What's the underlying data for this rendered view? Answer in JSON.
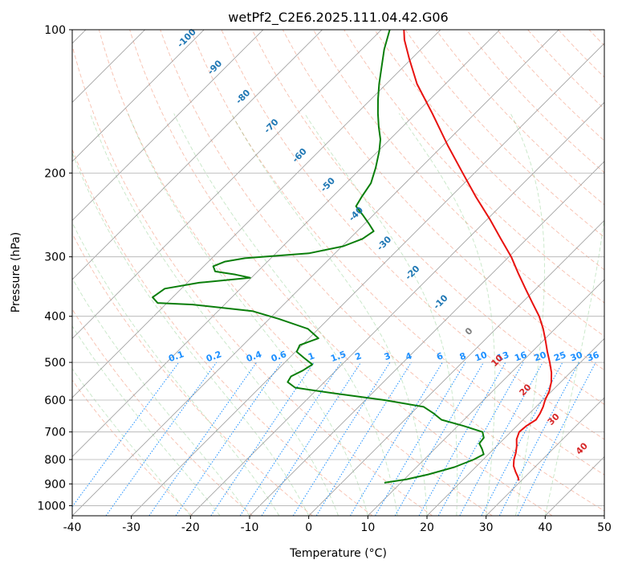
{
  "chart_data": {
    "type": "line",
    "subtype": "skew-t log-p diagram",
    "title": "wetPf2_C2E6.2025.111.04.42.G06",
    "xlabel": "Temperature (°C)",
    "ylabel": "Pressure (hPa)",
    "xlim": [
      -40,
      50
    ],
    "ylim": [
      1050,
      100
    ],
    "y_scale": "log",
    "x_ticks": [
      -40,
      -30,
      -20,
      -10,
      0,
      10,
      20,
      30,
      40,
      50
    ],
    "y_ticks": [
      100,
      200,
      300,
      400,
      500,
      600,
      700,
      800,
      900,
      1000
    ],
    "grid": true,
    "series": [
      {
        "role": "temperature",
        "color": "#e8120f",
        "points": [
          {
            "p": 886,
            "t": 29.6
          },
          {
            "p": 870,
            "t": 28.8
          },
          {
            "p": 850,
            "t": 27.6
          },
          {
            "p": 825,
            "t": 26.2
          },
          {
            "p": 800,
            "t": 25.2
          },
          {
            "p": 775,
            "t": 24.4
          },
          {
            "p": 750,
            "t": 23.4
          },
          {
            "p": 725,
            "t": 22.2
          },
          {
            "p": 700,
            "t": 21.4
          },
          {
            "p": 680,
            "t": 21.6
          },
          {
            "p": 660,
            "t": 22.2
          },
          {
            "p": 640,
            "t": 21.8
          },
          {
            "p": 620,
            "t": 21.2
          },
          {
            "p": 600,
            "t": 20.4
          },
          {
            "p": 575,
            "t": 19.6
          },
          {
            "p": 550,
            "t": 18.4
          },
          {
            "p": 525,
            "t": 16.8
          },
          {
            "p": 500,
            "t": 14.8
          },
          {
            "p": 475,
            "t": 12.6
          },
          {
            "p": 450,
            "t": 10.4
          },
          {
            "p": 425,
            "t": 8.0
          },
          {
            "p": 400,
            "t": 5.2
          },
          {
            "p": 375,
            "t": 1.8
          },
          {
            "p": 350,
            "t": -1.8
          },
          {
            "p": 325,
            "t": -5.6
          },
          {
            "p": 300,
            "t": -9.6
          },
          {
            "p": 275,
            "t": -14.4
          },
          {
            "p": 250,
            "t": -19.6
          },
          {
            "p": 225,
            "t": -25.6
          },
          {
            "p": 200,
            "t": -32.0
          },
          {
            "p": 175,
            "t": -39.2
          },
          {
            "p": 150,
            "t": -47.2
          },
          {
            "p": 130,
            "t": -54.8
          },
          {
            "p": 115,
            "t": -60.4
          },
          {
            "p": 105,
            "t": -64.4
          },
          {
            "p": 100,
            "t": -66.2
          }
        ]
      },
      {
        "role": "dewpoint",
        "color": "#0a7e0a",
        "points": [
          {
            "p": 895,
            "t": 7.2
          },
          {
            "p": 880,
            "t": 10.4
          },
          {
            "p": 860,
            "t": 13.2
          },
          {
            "p": 830,
            "t": 16.4
          },
          {
            "p": 800,
            "t": 18.4
          },
          {
            "p": 780,
            "t": 19.2
          },
          {
            "p": 760,
            "t": 18.0
          },
          {
            "p": 740,
            "t": 16.6
          },
          {
            "p": 720,
            "t": 16.4
          },
          {
            "p": 700,
            "t": 15.2
          },
          {
            "p": 680,
            "t": 11.0
          },
          {
            "p": 660,
            "t": 6.2
          },
          {
            "p": 640,
            "t": 3.8
          },
          {
            "p": 620,
            "t": 1.0
          },
          {
            "p": 600,
            "t": -6.8
          },
          {
            "p": 580,
            "t": -16.8
          },
          {
            "p": 565,
            "t": -24.0
          },
          {
            "p": 550,
            "t": -26.2
          },
          {
            "p": 535,
            "t": -26.6
          },
          {
            "p": 520,
            "t": -25.6
          },
          {
            "p": 505,
            "t": -25.0
          },
          {
            "p": 490,
            "t": -27.4
          },
          {
            "p": 475,
            "t": -29.8
          },
          {
            "p": 460,
            "t": -30.4
          },
          {
            "p": 445,
            "t": -28.4
          },
          {
            "p": 425,
            "t": -31.8
          },
          {
            "p": 405,
            "t": -38.4
          },
          {
            "p": 390,
            "t": -44.2
          },
          {
            "p": 378,
            "t": -55.4
          },
          {
            "p": 375,
            "t": -61.6
          },
          {
            "p": 365,
            "t": -63.4
          },
          {
            "p": 350,
            "t": -62.8
          },
          {
            "p": 340,
            "t": -58.0
          },
          {
            "p": 332,
            "t": -50.2
          },
          {
            "p": 327,
            "t": -53.2
          },
          {
            "p": 322,
            "t": -57.2
          },
          {
            "p": 314,
            "t": -58.4
          },
          {
            "p": 307,
            "t": -57.2
          },
          {
            "p": 302,
            "t": -54.4
          },
          {
            "p": 295,
            "t": -44.4
          },
          {
            "p": 285,
            "t": -39.8
          },
          {
            "p": 275,
            "t": -37.8
          },
          {
            "p": 265,
            "t": -37.2
          },
          {
            "p": 255,
            "t": -39.4
          },
          {
            "p": 245,
            "t": -41.8
          },
          {
            "p": 235,
            "t": -44.4
          },
          {
            "p": 225,
            "t": -45.0
          },
          {
            "p": 210,
            "t": -45.8
          },
          {
            "p": 195,
            "t": -47.6
          },
          {
            "p": 180,
            "t": -49.8
          },
          {
            "p": 170,
            "t": -51.6
          },
          {
            "p": 160,
            "t": -54.0
          },
          {
            "p": 150,
            "t": -56.4
          },
          {
            "p": 140,
            "t": -58.8
          },
          {
            "p": 130,
            "t": -61.2
          },
          {
            "p": 120,
            "t": -63.6
          },
          {
            "p": 110,
            "t": -66.2
          },
          {
            "p": 100,
            "t": -68.6
          }
        ]
      }
    ],
    "reference_lines": {
      "isotherm_spacing": 10,
      "dry_adiabat_labels": [
        "-100",
        "-90",
        "-80",
        "-70",
        "-60",
        "-50",
        "-40",
        "-30",
        "-20",
        "-10",
        "0",
        "10",
        "20",
        "30",
        "40"
      ],
      "dry_adiabat_label_colors": {
        "cold": "#1f77b4",
        "warm": "#d62728",
        "zero": "#7f7f7f"
      },
      "mixing_ratio_labels": [
        "0.1",
        "0.2",
        "0.4",
        "0.6",
        "1",
        "1.5",
        "2",
        "3",
        "4",
        "6",
        "8",
        "10",
        "13",
        "16",
        "20",
        "25",
        "30",
        "36"
      ],
      "mixing_ratio_color": "#1e90ff"
    }
  }
}
